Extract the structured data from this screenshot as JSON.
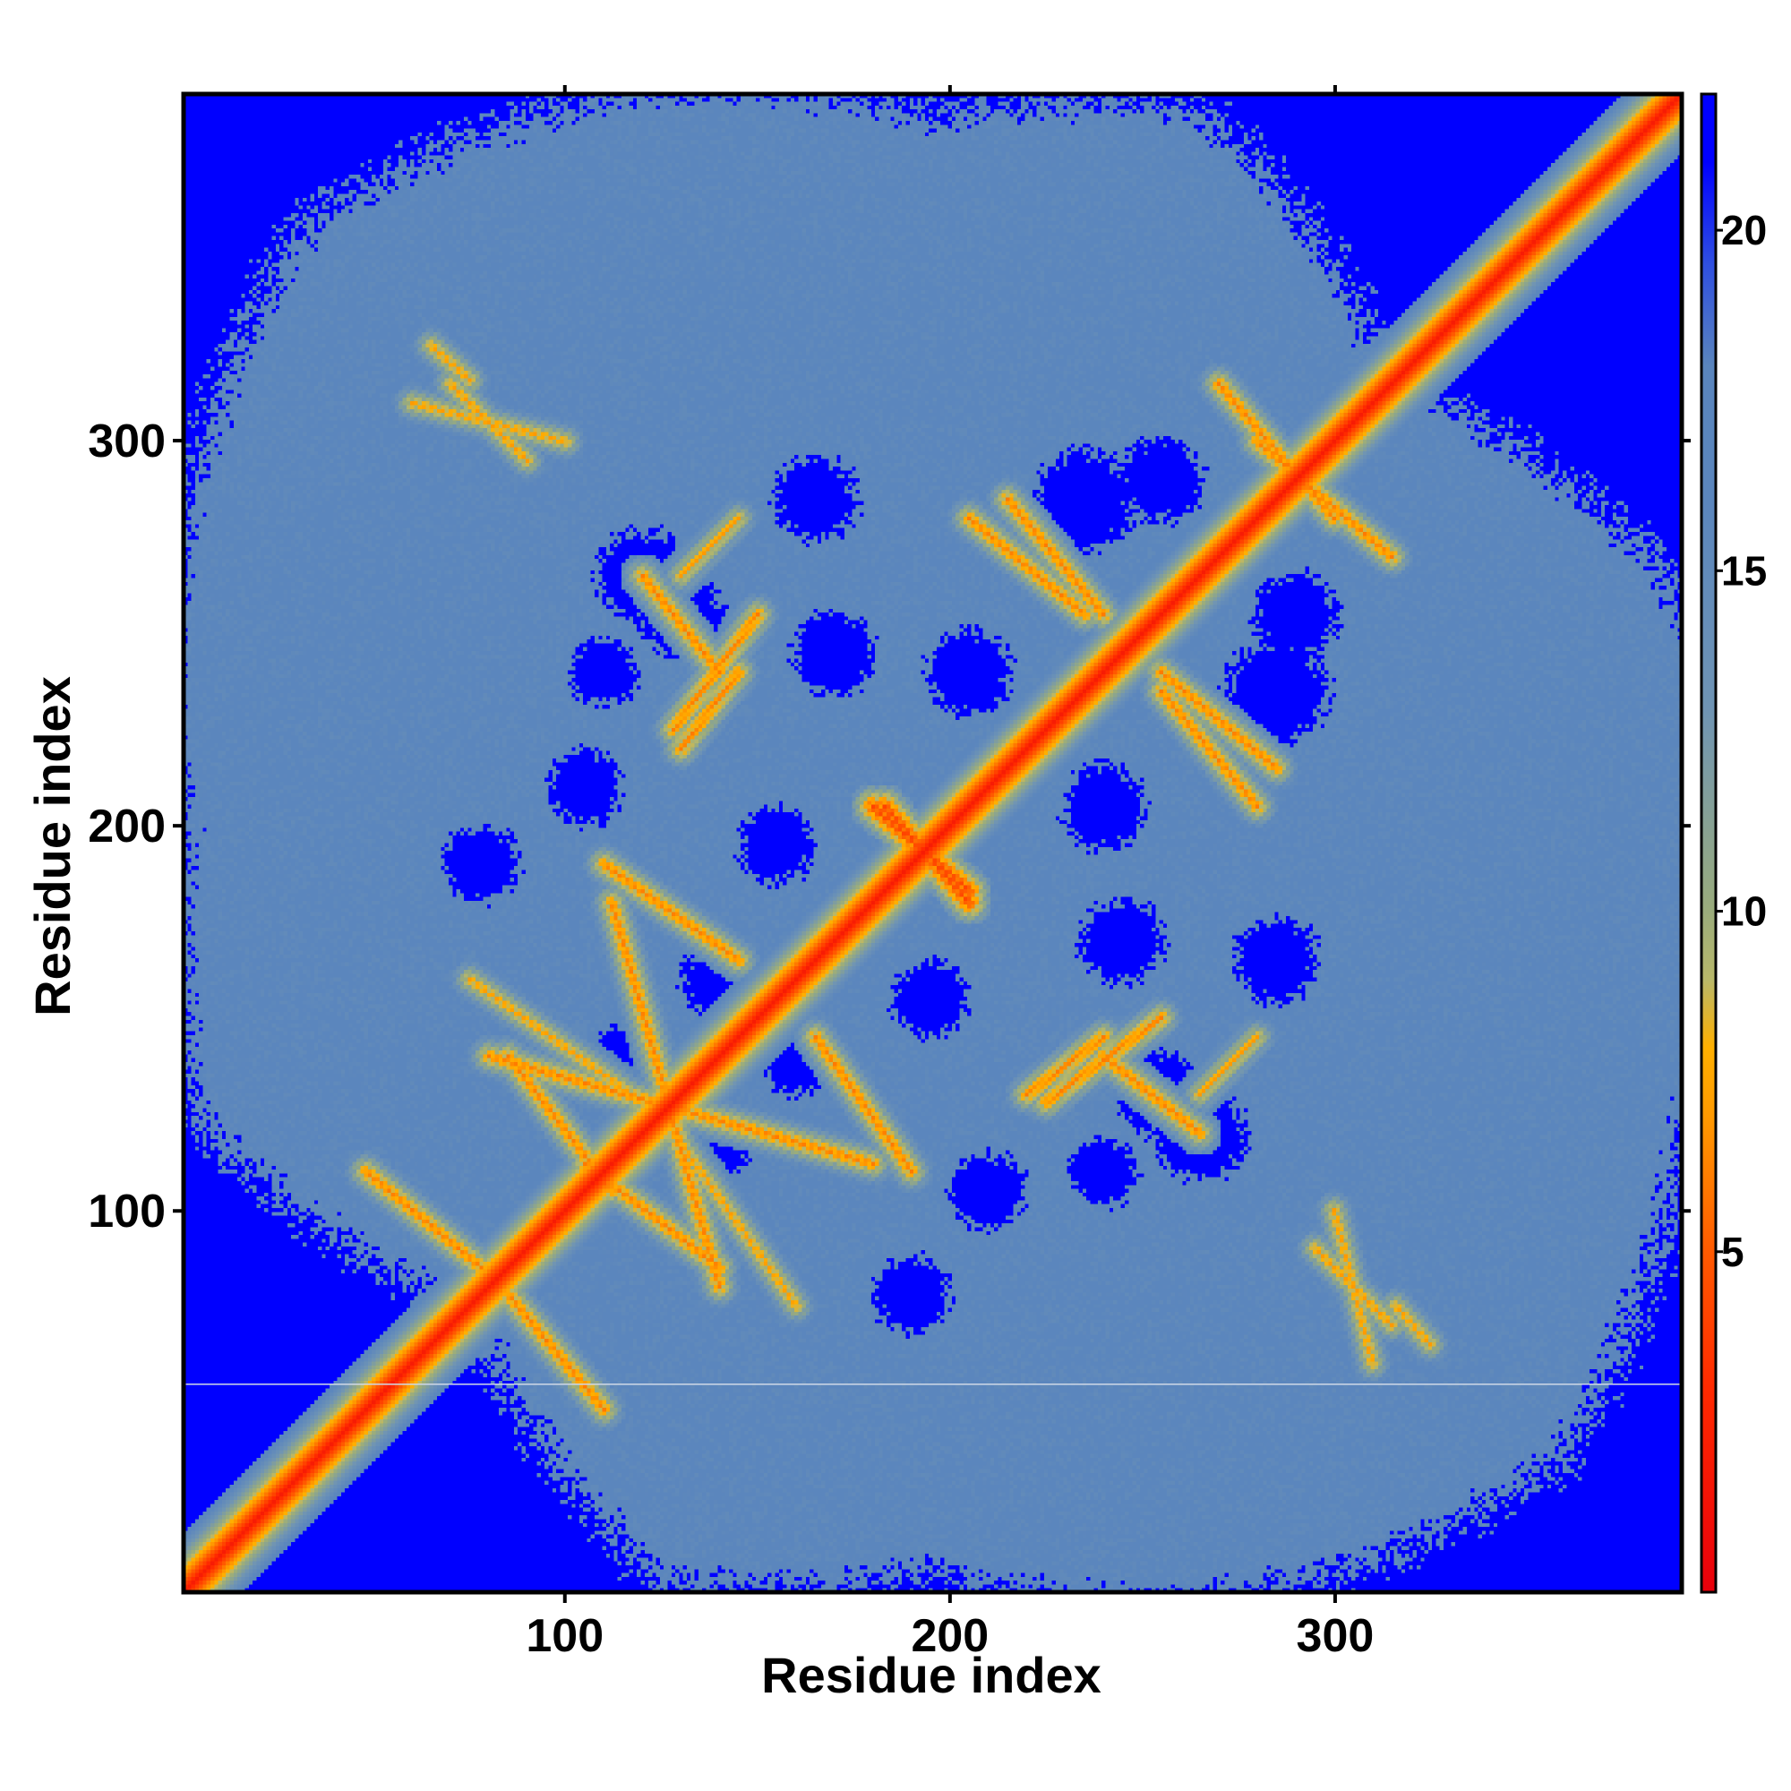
{
  "chart_data": {
    "type": "heatmap",
    "title": "",
    "xlabel": "Residue index",
    "ylabel": "Residue index",
    "xlim": [
      1,
      390
    ],
    "ylim": [
      1,
      390
    ],
    "x_ticks": [
      100,
      200,
      300
    ],
    "y_ticks": [
      100,
      200,
      300
    ],
    "colorbar": {
      "range": [
        0,
        22
      ],
      "ticks": [
        5,
        10,
        15,
        20
      ],
      "stops": [
        {
          "value": 0,
          "color": "#e8000b"
        },
        {
          "value": 3,
          "color": "#ff2a00"
        },
        {
          "value": 5,
          "color": "#ff5a00"
        },
        {
          "value": 7,
          "color": "#ff9a00"
        },
        {
          "value": 8,
          "color": "#ffb000"
        },
        {
          "value": 9,
          "color": "#b8b86a"
        },
        {
          "value": 10,
          "color": "#9aac7c"
        },
        {
          "value": 13,
          "color": "#6f94b4"
        },
        {
          "value": 16,
          "color": "#5b86bd"
        },
        {
          "value": 18,
          "color": "#5a85bd"
        },
        {
          "value": 19.5,
          "color": "#2f4fe0"
        },
        {
          "value": 21,
          "color": "#0000ff"
        }
      ]
    },
    "background_value": 22,
    "protein_envelope_value": 16,
    "diagonal": {
      "value": 2,
      "halfwidth_residues": 5
    },
    "contact_bands": [
      {
        "from": [
          48,
          110
        ],
        "to": [
          78,
          85
        ],
        "value": 6
      },
      {
        "from": [
          85,
          78
        ],
        "to": [
          110,
          48
        ],
        "value": 6
      },
      {
        "from": [
          85,
          140
        ],
        "to": [
          112,
          105
        ],
        "value": 6
      },
      {
        "from": [
          105,
          112
        ],
        "to": [
          140,
          85
        ],
        "value": 6
      },
      {
        "from": [
          112,
          180
        ],
        "to": [
          140,
          80
        ],
        "value": 6
      },
      {
        "from": [
          80,
          140
        ],
        "to": [
          180,
          112
        ],
        "value": 6
      },
      {
        "from": [
          128,
          120
        ],
        "to": [
          160,
          75
        ],
        "value": 7
      },
      {
        "from": [
          75,
          160
        ],
        "to": [
          120,
          128
        ],
        "value": 7
      },
      {
        "from": [
          165,
          145
        ],
        "to": [
          190,
          110
        ],
        "value": 6
      },
      {
        "from": [
          110,
          190
        ],
        "to": [
          145,
          165
        ],
        "value": 6
      },
      {
        "from": [
          183,
          205
        ],
        "to": [
          205,
          180
        ],
        "value": 4
      },
      {
        "from": [
          180,
          205
        ],
        "to": [
          205,
          183
        ],
        "value": 4
      },
      {
        "from": [
          130,
          220
        ],
        "to": [
          145,
          240
        ],
        "value": 6
      },
      {
        "from": [
          220,
          130
        ],
        "to": [
          240,
          145
        ],
        "value": 6
      },
      {
        "from": [
          130,
          265
        ],
        "to": [
          145,
          280
        ],
        "value": 7
      },
      {
        "from": [
          265,
          130
        ],
        "to": [
          280,
          145
        ],
        "value": 7
      },
      {
        "from": [
          70,
          315
        ],
        "to": [
          90,
          295
        ],
        "value": 7
      },
      {
        "from": [
          295,
          90
        ],
        "to": [
          315,
          70
        ],
        "value": 7
      },
      {
        "from": [
          215,
          285
        ],
        "to": [
          240,
          255
        ],
        "value": 6
      },
      {
        "from": [
          255,
          240
        ],
        "to": [
          285,
          215
        ],
        "value": 6
      },
      {
        "from": [
          255,
          235
        ],
        "to": [
          280,
          205
        ],
        "value": 6
      },
      {
        "from": [
          205,
          280
        ],
        "to": [
          235,
          255
        ],
        "value": 6
      },
      {
        "from": [
          270,
          315
        ],
        "to": [
          300,
          280
        ],
        "value": 6
      },
      {
        "from": [
          280,
          300
        ],
        "to": [
          315,
          270
        ],
        "value": 6
      },
      {
        "from": [
          300,
          100
        ],
        "to": [
          310,
          60
        ],
        "value": 7
      },
      {
        "from": [
          60,
          310
        ],
        "to": [
          100,
          300
        ],
        "value": 7
      },
      {
        "from": [
          240,
          140
        ],
        "to": [
          265,
          120
        ],
        "value": 6
      },
      {
        "from": [
          120,
          265
        ],
        "to": [
          140,
          240
        ],
        "value": 6
      },
      {
        "from": [
          225,
          128
        ],
        "to": [
          255,
          150
        ],
        "value": 6
      },
      {
        "from": [
          128,
          225
        ],
        "to": [
          150,
          255
        ],
        "value": 6
      },
      {
        "from": [
          316,
          75
        ],
        "to": [
          325,
          65
        ],
        "value": 7
      },
      {
        "from": [
          65,
          325
        ],
        "to": [
          75,
          316
        ],
        "value": 7
      }
    ],
    "background_pockets": [
      {
        "center": [
          78,
          190
        ],
        "radius": 9
      },
      {
        "center": [
          190,
          78
        ],
        "radius": 9
      },
      {
        "center": [
          160,
          140
        ],
        "radius": 9
      },
      {
        "center": [
          140,
          160
        ],
        "radius": 9
      },
      {
        "center": [
          195,
          155
        ],
        "radius": 9
      },
      {
        "center": [
          155,
          195
        ],
        "radius": 9
      },
      {
        "center": [
          265,
          120
        ],
        "radius": 11
      },
      {
        "center": [
          120,
          265
        ],
        "radius": 11
      },
      {
        "center": [
          240,
          205
        ],
        "radius": 10
      },
      {
        "center": [
          205,
          240
        ],
        "radius": 10
      },
      {
        "center": [
          235,
          285
        ],
        "radius": 12
      },
      {
        "center": [
          285,
          235
        ],
        "radius": 12
      },
      {
        "center": [
          290,
          255
        ],
        "radius": 10
      },
      {
        "center": [
          255,
          290
        ],
        "radius": 10
      },
      {
        "center": [
          165,
          285
        ],
        "radius": 10
      },
      {
        "center": [
          285,
          165
        ],
        "radius": 10
      },
      {
        "center": [
          110,
          240
        ],
        "radius": 8
      },
      {
        "center": [
          240,
          110
        ],
        "radius": 8
      },
      {
        "center": [
          170,
          245
        ],
        "radius": 10
      },
      {
        "center": [
          245,
          170
        ],
        "radius": 10
      },
      {
        "center": [
          140,
          115
        ],
        "radius": 7
      },
      {
        "center": [
          115,
          140
        ],
        "radius": 7
      },
      {
        "center": [
          255,
          130
        ],
        "radius": 10
      },
      {
        "center": [
          130,
          255
        ],
        "radius": 10
      },
      {
        "center": [
          210,
          105
        ],
        "radius": 9
      },
      {
        "center": [
          105,
          210
        ],
        "radius": 9
      }
    ],
    "envelope": {
      "center": [
        195,
        195
      ],
      "radii_by_angle_deg": [
        {
          "angle": 0,
          "r": 215
        },
        {
          "angle": 20,
          "r": 205
        },
        {
          "angle": 45,
          "r": 170
        },
        {
          "angle": 70,
          "r": 205
        },
        {
          "angle": 90,
          "r": 190
        },
        {
          "angle": 110,
          "r": 210
        },
        {
          "angle": 135,
          "r": 230
        },
        {
          "angle": 160,
          "r": 210
        },
        {
          "angle": 180,
          "r": 195
        },
        {
          "angle": 200,
          "r": 205
        },
        {
          "angle": 225,
          "r": 170
        },
        {
          "angle": 250,
          "r": 205
        },
        {
          "angle": 270,
          "r": 190
        },
        {
          "angle": 290,
          "r": 210
        },
        {
          "angle": 315,
          "r": 230
        },
        {
          "angle": 340,
          "r": 210
        }
      ]
    },
    "horizontal_line": {
      "y": 55,
      "color": "#cfd8e6"
    },
    "legend": "colorbar-right"
  }
}
